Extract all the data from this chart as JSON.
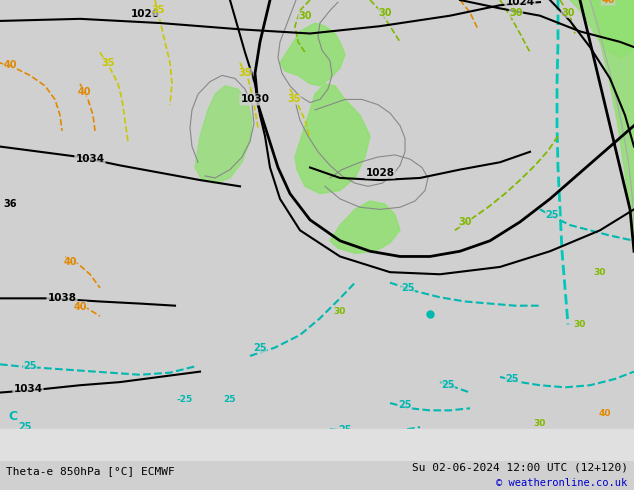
{
  "title_left": "Theta-e 850hPa [°C] ECMWF",
  "title_right": "Su 02-06-2024 12:00 UTC (12+120)",
  "title_right2": "© weatheronline.co.uk",
  "bg_color": "#d0d0d0",
  "green_fill": "#90e070",
  "fig_width": 6.34,
  "fig_height": 4.9,
  "dpi": 100
}
